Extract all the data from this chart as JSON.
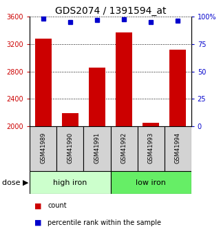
{
  "title": "GDS2074 / 1391594_at",
  "categories": [
    "GSM41989",
    "GSM41990",
    "GSM41991",
    "GSM41992",
    "GSM41993",
    "GSM41994"
  ],
  "bar_values": [
    3280,
    2190,
    2860,
    3370,
    2050,
    3120
  ],
  "percentile_values": [
    98,
    95,
    97,
    97.5,
    95,
    96
  ],
  "bar_color": "#cc0000",
  "dot_color": "#0000cc",
  "ylim_left": [
    2000,
    3600
  ],
  "ylim_right": [
    0,
    100
  ],
  "yticks_left": [
    2000,
    2400,
    2800,
    3200,
    3600
  ],
  "yticks_right": [
    0,
    25,
    50,
    75,
    100
  ],
  "ytick_labels_right": [
    "0",
    "25",
    "50",
    "75",
    "100%"
  ],
  "group1_label": "high iron",
  "group2_label": "low iron",
  "legend_count": "count",
  "legend_pct": "percentile rank within the sample",
  "bar_color_hex": "#cc0000",
  "dot_color_hex": "#0000cc",
  "group1_color": "#ccffcc",
  "group2_color": "#66ee66",
  "xtick_bg": "#d3d3d3",
  "title_fontsize": 10,
  "tick_fontsize": 7,
  "xtick_fontsize": 6,
  "group_fontsize": 8,
  "legend_fontsize": 7,
  "dose_fontsize": 8
}
